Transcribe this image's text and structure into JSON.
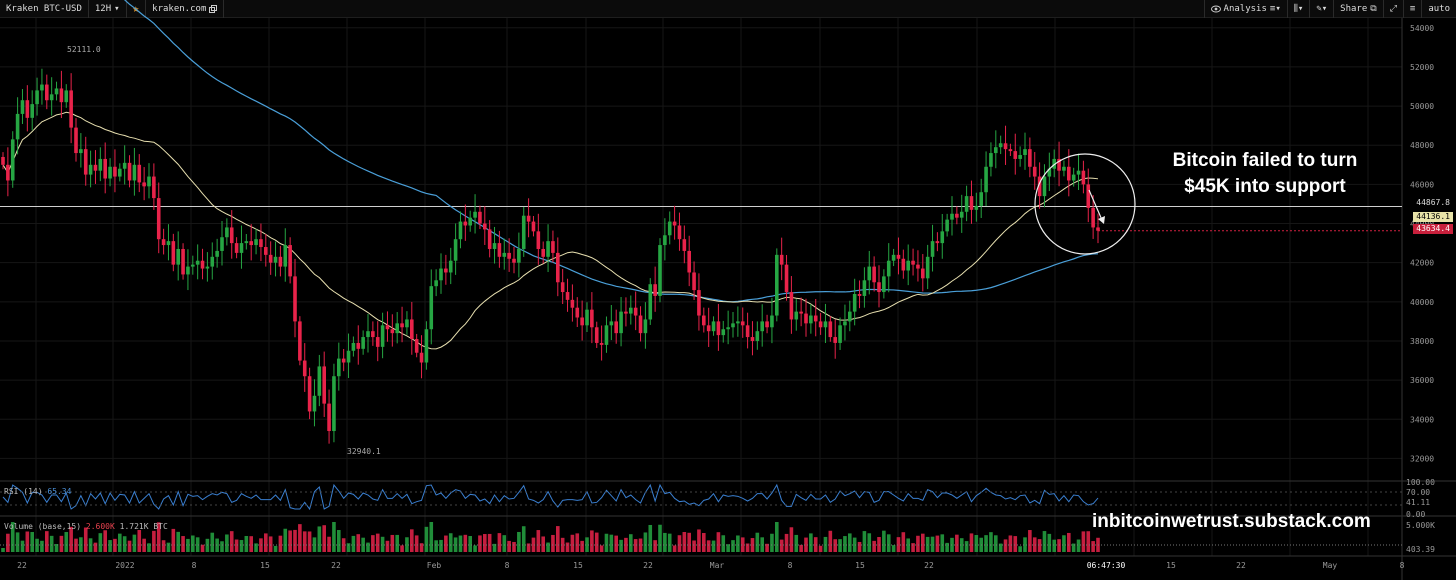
{
  "toolbar": {
    "symbol": "Kraken BTC-USD",
    "interval": "12H",
    "interval_caret": "▾",
    "site": "kraken.com",
    "analysis": "Analysis",
    "share": "Share",
    "auto": "auto"
  },
  "price_axis": {
    "labels": [
      "54000",
      "52000",
      "50000",
      "48000",
      "46000",
      "44000",
      "42000",
      "40000",
      "38000",
      "36000",
      "34000",
      "32000"
    ],
    "current_price": "43634.4",
    "ma_price": "44136.1",
    "resistance_price": "44867.8"
  },
  "rsi": {
    "label": "RSI (14)",
    "value": "65.34",
    "axis": [
      "100.00",
      "70.00",
      "41.11",
      "0.00"
    ]
  },
  "volume": {
    "label": "Volume (base,15)",
    "value_red": "2.600K",
    "value": "1.721K BTC",
    "axis": [
      "5.000K",
      "403.39"
    ]
  },
  "time_axis": {
    "labels": [
      "22",
      "2022",
      "8",
      "15",
      "22",
      "Feb",
      "8",
      "15",
      "22",
      "Mar",
      "8",
      "15",
      "22",
      "06:47:30",
      "15",
      "22",
      "May",
      "8"
    ]
  },
  "annotations": {
    "high": "52111.0",
    "low": "32940.1",
    "headline_line1": "Bitcoin failed to turn",
    "headline_line2": "$45K into support",
    "watermark": "inbitcoinwetrust.substack.com"
  },
  "colors": {
    "up": "#26a643",
    "down": "#e8234a",
    "ma_long": "#4a9fd8",
    "ma_short": "#e8e0b0",
    "resistance": "#cfcfcf",
    "current_line": "#d02040"
  },
  "chart_data": {
    "type": "candlestick",
    "pair": "BTC-USD",
    "interval": "12H",
    "ylim": [
      31000,
      54500
    ],
    "price_high": 52111.0,
    "price_low": 32940.1,
    "resistance_level": 44867.8,
    "last_price": 43634.4,
    "closes": [
      47000,
      46200,
      48300,
      49600,
      50300,
      49400,
      50100,
      50800,
      51100,
      50300,
      50600,
      50900,
      50200,
      50800,
      48900,
      47600,
      47800,
      46500,
      47000,
      46700,
      47300,
      46300,
      46900,
      46400,
      46800,
      47100,
      46200,
      47000,
      46100,
      45900,
      46400,
      45300,
      43200,
      42900,
      43100,
      41900,
      42700,
      41400,
      41800,
      41900,
      42100,
      41700,
      41800,
      42300,
      42600,
      43300,
      43800,
      43000,
      42500,
      43000,
      43100,
      42900,
      43200,
      42800,
      42400,
      42000,
      42300,
      41800,
      42900,
      41300,
      39000,
      37000,
      36200,
      34400,
      35200,
      36700,
      34800,
      33400,
      36200,
      37100,
      36900,
      37500,
      37900,
      37600,
      38200,
      38500,
      38200,
      37700,
      38800,
      38600,
      38400,
      38900,
      38700,
      39100,
      38100,
      37400,
      36900,
      38600,
      40800,
      41100,
      41700,
      41500,
      42100,
      43200,
      44100,
      43900,
      44300,
      44600,
      44000,
      43700,
      42700,
      43000,
      42300,
      42500,
      42200,
      42000,
      42700,
      44400,
      44100,
      43600,
      42700,
      42300,
      43100,
      42500,
      41000,
      40500,
      40100,
      39700,
      39200,
      38800,
      39600,
      38700,
      37900,
      37800,
      38800,
      39000,
      38400,
      39500,
      39400,
      39700,
      39300,
      38400,
      39100,
      40900,
      40300,
      42900,
      43400,
      44100,
      43900,
      43200,
      42600,
      41500,
      40600,
      39300,
      38800,
      38500,
      39000,
      38300,
      38600,
      38700,
      38900,
      39000,
      38800,
      38200,
      38000,
      38500,
      39000,
      38700,
      39300,
      42400,
      41900,
      40500,
      39100,
      39500,
      39400,
      38900,
      39300,
      39000,
      38700,
      39000,
      38200,
      37900,
      38800,
      39000,
      39500,
      40400,
      40300,
      41100,
      41800,
      41000,
      40500,
      41300,
      42100,
      42400,
      42200,
      41600,
      42100,
      41900,
      41700,
      41200,
      42300,
      43100,
      43000,
      43600,
      44200,
      44500,
      44300,
      44600,
      45400,
      44700,
      44900,
      45600,
      46900,
      47600,
      47900,
      48100,
      47800,
      47700,
      47300,
      47500,
      47800,
      46900,
      46400,
      45400,
      46400,
      46800,
      47300,
      46700,
      46900,
      46200,
      46500,
      46700,
      46000,
      44800,
      43800,
      43634
    ]
  }
}
